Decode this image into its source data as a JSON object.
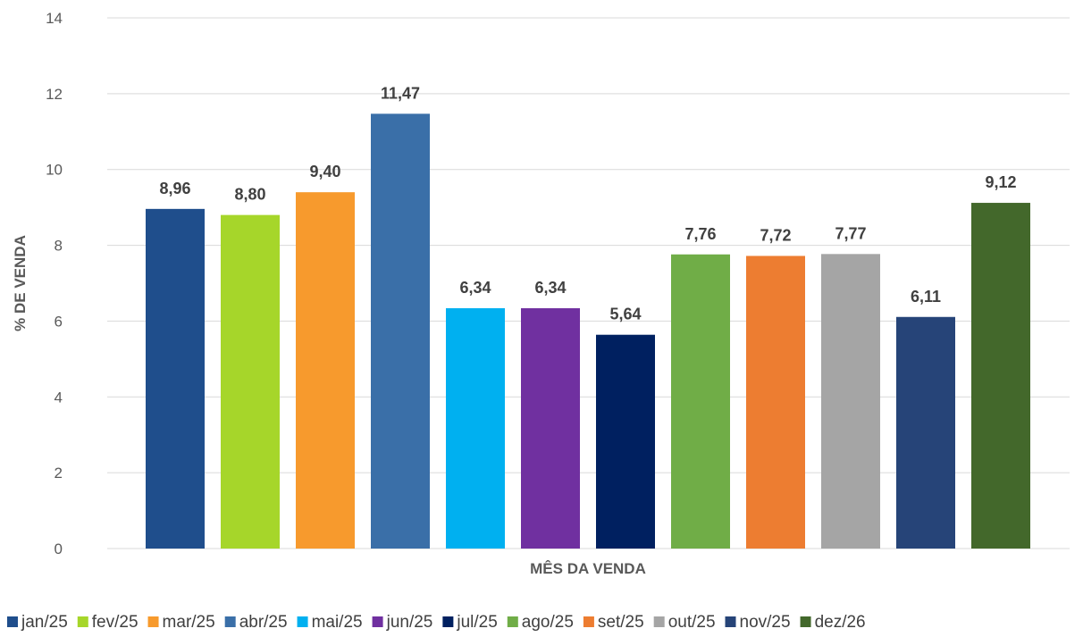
{
  "chart_data": {
    "type": "bar",
    "xlabel": "MÊS DA VENDA",
    "ylabel": "% DE VENDA",
    "ylim": [
      0,
      14
    ],
    "yticks": [
      0,
      2,
      4,
      6,
      8,
      10,
      12,
      14
    ],
    "grid": true,
    "legend_position": "bottom",
    "categories": [
      "jan/25",
      "fev/25",
      "mar/25",
      "abr/25",
      "mai/25",
      "jun/25",
      "jul/25",
      "ago/25",
      "set/25",
      "out/25",
      "nov/25",
      "dez/26"
    ],
    "values": [
      8.96,
      8.8,
      9.4,
      11.47,
      6.34,
      6.34,
      5.64,
      7.76,
      7.72,
      7.77,
      6.11,
      9.12
    ],
    "data_labels": [
      "8,96",
      "8,80",
      "9,40",
      "11,47",
      "6,34",
      "6,34",
      "5,64",
      "7,76",
      "7,72",
      "7,77",
      "6,11",
      "9,12"
    ],
    "colors": [
      "#1F4E8C",
      "#A6D62A",
      "#F79A2D",
      "#3A6FA8",
      "#00B0F0",
      "#7030A0",
      "#002060",
      "#70AD47",
      "#ED7D31",
      "#A5A5A5",
      "#264478",
      "#43682B"
    ]
  }
}
